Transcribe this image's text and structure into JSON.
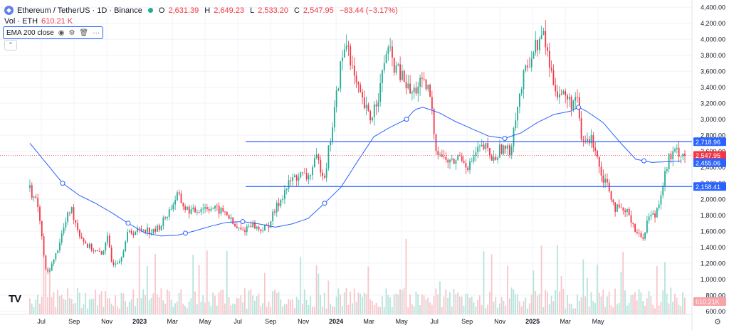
{
  "header": {
    "symbol": "Ethereum / TetherUS · 1D · Binance",
    "open_label": "O",
    "open": "2,631.39",
    "high_label": "H",
    "high": "2,649.23",
    "low_label": "L",
    "low": "2,533.20",
    "close_label": "C",
    "close": "2,547.95",
    "change": "−83.44 (−3.17%)",
    "vol_label": "Vol · ETH",
    "vol_value": "610.21 K",
    "indicator": "EMA 200 close"
  },
  "icons": {
    "logo": "ethereum-logo-icon",
    "eye": "eye-icon",
    "settings": "gear-icon",
    "delete": "trash-icon",
    "more": "more-icon",
    "collapse": "chevron-up-icon",
    "axis_settings": "gear-icon"
  },
  "colors": {
    "up": "#22ab94",
    "down": "#f23645",
    "ema": "#2962ff",
    "hline": "#2962ff",
    "grid": "#f0f3fa"
  },
  "chart_data": {
    "type": "candlestick",
    "y_ticks": [
      "4,400.00",
      "4,200.00",
      "4,000.00",
      "3,800.00",
      "3,600.00",
      "3,400.00",
      "3,200.00",
      "3,000.00",
      "2,800.00",
      "2,600.00",
      "2,400.00",
      "2,200.00",
      "2,000.00",
      "1,800.00",
      "1,600.00",
      "1,400.00",
      "1,200.00",
      "1,000.00",
      "800.00",
      "600.00"
    ],
    "x_ticks": [
      "Jul",
      "Sep",
      "Nov",
      "2023",
      "Mar",
      "May",
      "Jul",
      "Sep",
      "Nov",
      "2024",
      "Mar",
      "May",
      "Jul",
      "Sep",
      "Nov",
      "2025",
      "Mar",
      "May"
    ],
    "ylim": [
      560,
      4420
    ],
    "grid": true,
    "price_path": [
      [
        0,
        2140
      ],
      [
        0.5,
        1900
      ],
      [
        1,
        1050
      ],
      [
        1.5,
        1250
      ],
      [
        2,
        1600
      ],
      [
        2.5,
        1900
      ],
      [
        3,
        1580
      ],
      [
        3.5,
        1420
      ],
      [
        4,
        1350
      ],
      [
        4.4,
        1300
      ],
      [
        4.7,
        1550
      ],
      [
        5,
        1200
      ],
      [
        5.5,
        1250
      ],
      [
        6,
        1580
      ],
      [
        6.5,
        1600
      ],
      [
        7,
        1640
      ],
      [
        7.5,
        1580
      ],
      [
        8,
        1680
      ],
      [
        8.5,
        1850
      ],
      [
        9,
        2050
      ],
      [
        9.5,
        1880
      ],
      [
        10,
        1840
      ],
      [
        10.5,
        1900
      ],
      [
        11,
        1900
      ],
      [
        11.5,
        1860
      ],
      [
        12,
        1830
      ],
      [
        12.5,
        1650
      ],
      [
        13,
        1600
      ],
      [
        13.5,
        1700
      ],
      [
        14,
        1620
      ],
      [
        14.5,
        1650
      ],
      [
        15,
        1870
      ],
      [
        15.5,
        2080
      ],
      [
        16,
        2250
      ],
      [
        16.5,
        2300
      ],
      [
        17,
        2270
      ],
      [
        17.5,
        2500
      ],
      [
        18,
        2300
      ],
      [
        18.5,
        2950
      ],
      [
        19,
        3700
      ],
      [
        19.4,
        4000
      ],
      [
        19.8,
        3500
      ],
      [
        20.3,
        3200
      ],
      [
        20.8,
        3000
      ],
      [
        21.4,
        3400
      ],
      [
        21.8,
        3900
      ],
      [
        22.3,
        3650
      ],
      [
        22.8,
        3500
      ],
      [
        23.3,
        3300
      ],
      [
        23.8,
        3450
      ],
      [
        24.4,
        3350
      ],
      [
        24.8,
        2650
      ],
      [
        25.3,
        2500
      ],
      [
        25.8,
        2450
      ],
      [
        26.3,
        2550
      ],
      [
        26.8,
        2400
      ],
      [
        27.3,
        2600
      ],
      [
        27.8,
        2650
      ],
      [
        28.3,
        2480
      ],
      [
        28.8,
        2650
      ],
      [
        29.3,
        2580
      ],
      [
        29.7,
        3100
      ],
      [
        30.2,
        3550
      ],
      [
        30.6,
        3800
      ],
      [
        31,
        3950
      ],
      [
        31.4,
        4050
      ],
      [
        31.8,
        3600
      ],
      [
        32.2,
        3350
      ],
      [
        32.6,
        3300
      ],
      [
        33,
        3200
      ],
      [
        33.4,
        3250
      ],
      [
        33.7,
        2700
      ],
      [
        34.1,
        2750
      ],
      [
        34.5,
        2700
      ],
      [
        34.9,
        2300
      ],
      [
        35.3,
        2200
      ],
      [
        35.7,
        1900
      ],
      [
        36.1,
        1850
      ],
      [
        36.6,
        1820
      ],
      [
        37,
        1600
      ],
      [
        37.4,
        1500
      ],
      [
        37.8,
        1800
      ],
      [
        38.2,
        1800
      ],
      [
        38.6,
        2150
      ],
      [
        39,
        2500
      ],
      [
        39.5,
        2600
      ],
      [
        40,
        2560
      ]
    ],
    "ema200": [
      [
        0,
        2700
      ],
      [
        1,
        2450
      ],
      [
        2,
        2200
      ],
      [
        3,
        2050
      ],
      [
        4,
        1950
      ],
      [
        5,
        1830
      ],
      [
        6,
        1700
      ],
      [
        7,
        1580
      ],
      [
        8,
        1540
      ],
      [
        9,
        1550
      ],
      [
        10,
        1600
      ],
      [
        11,
        1660
      ],
      [
        12,
        1710
      ],
      [
        13,
        1720
      ],
      [
        14,
        1690
      ],
      [
        15,
        1650
      ],
      [
        16,
        1690
      ],
      [
        17,
        1760
      ],
      [
        18,
        1950
      ],
      [
        19,
        2150
      ],
      [
        20,
        2470
      ],
      [
        21,
        2780
      ],
      [
        22,
        2900
      ],
      [
        23,
        3000
      ],
      [
        23.5,
        3120
      ],
      [
        24,
        3150
      ],
      [
        25,
        3080
      ],
      [
        26,
        2970
      ],
      [
        27,
        2880
      ],
      [
        28,
        2790
      ],
      [
        29,
        2760
      ],
      [
        30,
        2830
      ],
      [
        31,
        2960
      ],
      [
        32,
        3060
      ],
      [
        33,
        3100
      ],
      [
        33.5,
        3150
      ],
      [
        34,
        3100
      ],
      [
        35,
        2960
      ],
      [
        36,
        2720
      ],
      [
        37,
        2500
      ],
      [
        38,
        2460
      ],
      [
        39,
        2470
      ],
      [
        40,
        2480
      ]
    ],
    "h_lines": [
      {
        "price": 2718.96,
        "label": "2,718.96",
        "x_start": 0.337
      },
      {
        "price": 2158.41,
        "label": "2,158.41",
        "x_start": 0.337
      }
    ],
    "price_tags": [
      {
        "price": 2718.96,
        "label": "2,718.96",
        "bg": "#2962ff"
      },
      {
        "price": 2547.95,
        "label": "2,547.95",
        "bg": "#f23645"
      },
      {
        "price": 2455.06,
        "label": "2,455.06",
        "bg": "#2962ff"
      },
      {
        "price": 2158.41,
        "label": "2,158.41",
        "bg": "#2962ff"
      }
    ],
    "volume_tag": "610.21K"
  }
}
